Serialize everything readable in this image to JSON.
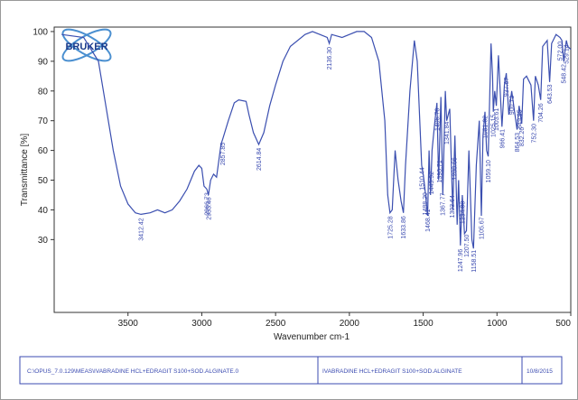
{
  "chart_data": {
    "type": "line",
    "logo": "BRUKER",
    "xlabel": "Wavenumber cm-1",
    "ylabel": "Transmittance [%]",
    "xlim": [
      4000,
      500
    ],
    "ylim": [
      5.5,
      101.5
    ],
    "xticks": [
      3500,
      3000,
      2500,
      2000,
      1500,
      1000,
      500
    ],
    "yticks": [
      30,
      40,
      50,
      60,
      70,
      80,
      90,
      100
    ],
    "color": "#3b4fb0",
    "x": [
      3950,
      3800,
      3700,
      3650,
      3600,
      3550,
      3500,
      3450,
      3412,
      3350,
      3300,
      3250,
      3200,
      3150,
      3100,
      3050,
      3020,
      3000,
      2985,
      2966,
      2955,
      2940,
      2920,
      2900,
      2870,
      2857,
      2820,
      2780,
      2750,
      2700,
      2680,
      2650,
      2614,
      2580,
      2540,
      2500,
      2450,
      2400,
      2300,
      2250,
      2200,
      2150,
      2136,
      2120,
      2050,
      2000,
      1950,
      1900,
      1850,
      1800,
      1760,
      1740,
      1725,
      1710,
      1690,
      1670,
      1650,
      1634,
      1620,
      1590,
      1560,
      1540,
      1510,
      1500,
      1490,
      1470,
      1460,
      1450,
      1440,
      1420,
      1407,
      1395,
      1380,
      1367,
      1350,
      1341,
      1320,
      1300,
      1285,
      1270,
      1260,
      1248,
      1235,
      1220,
      1207,
      1190,
      1170,
      1159,
      1140,
      1120,
      1106,
      1095,
      1081,
      1070,
      1059,
      1040,
      1030,
      1025,
      1015,
      1004,
      990,
      966,
      950,
      937,
      920,
      900,
      864,
      850,
      832,
      820,
      800,
      770,
      752,
      740,
      720,
      704,
      690,
      660,
      643,
      630,
      600,
      573,
      560,
      548,
      530,
      520,
      500
    ],
    "values": [
      99,
      98,
      90,
      75,
      60,
      48,
      42,
      39,
      38.5,
      39,
      40,
      39,
      40,
      43,
      47,
      53,
      55,
      54,
      48,
      47,
      45,
      50,
      52,
      51,
      62,
      64,
      70,
      76,
      77,
      76.5,
      72,
      66,
      62,
      66,
      75,
      82,
      90,
      95,
      99,
      100,
      99,
      98,
      96,
      99,
      98,
      99,
      100,
      100,
      98,
      90,
      70,
      45,
      39,
      40,
      60,
      50,
      43,
      39,
      55,
      80,
      97,
      90,
      55,
      52,
      48,
      38,
      60,
      45,
      60,
      70,
      76,
      50,
      78,
      45,
      80,
      70,
      74,
      40,
      65,
      35,
      50,
      28,
      45,
      32,
      33,
      60,
      30,
      27,
      55,
      70,
      38,
      65,
      73,
      60,
      58,
      96,
      85,
      73,
      80,
      75,
      92,
      68,
      82,
      86,
      72,
      80,
      67,
      75,
      69,
      84,
      85,
      82,
      70,
      85,
      82,
      77,
      95,
      97,
      83,
      96,
      99,
      98,
      97,
      90,
      97,
      95,
      94
    ],
    "annotations": [
      {
        "value": 3412.42,
        "label": "3412.42"
      },
      {
        "value": 2966.73,
        "label": "2966.73"
      },
      {
        "value": 2953.46,
        "label": "2953.46"
      },
      {
        "value": 2857.85,
        "label": "2857.85"
      },
      {
        "value": 2614.84,
        "label": "2614.84"
      },
      {
        "value": 2136.3,
        "label": "2136.30"
      },
      {
        "value": 1725.28,
        "label": "1725.28"
      },
      {
        "value": 1633.86,
        "label": "1633.86"
      },
      {
        "value": 1510.44,
        "label": "1510.44"
      },
      {
        "value": 1488.2,
        "label": "1488.20"
      },
      {
        "value": 1468.41,
        "label": "1468.41"
      },
      {
        "value": 1443.92,
        "label": "1443.92"
      },
      {
        "value": 1406.76,
        "label": "1406.76"
      },
      {
        "value": 1390.71,
        "label": "1390.71"
      },
      {
        "value": 1367.77,
        "label": "1367.77"
      },
      {
        "value": 1341.84,
        "label": "1341.84"
      },
      {
        "value": 1303.64,
        "label": "1303.64"
      },
      {
        "value": 1288.66,
        "label": "1288.66"
      },
      {
        "value": 1247.96,
        "label": "1247.96"
      },
      {
        "value": 1234.03,
        "label": "1234.03"
      },
      {
        "value": 1207.5,
        "label": "1207.50"
      },
      {
        "value": 1158.51,
        "label": "1158.51"
      },
      {
        "value": 1105.67,
        "label": "1105.67"
      },
      {
        "value": 1081.02,
        "label": "1081.02"
      },
      {
        "value": 1059.1,
        "label": "1059.10"
      },
      {
        "value": 1025.15,
        "label": "1025.15"
      },
      {
        "value": 1003.61,
        "label": "1003.61"
      },
      {
        "value": 966.41,
        "label": "966.41"
      },
      {
        "value": 937.67,
        "label": "937.67"
      },
      {
        "value": 900.73,
        "label": "900.73"
      },
      {
        "value": 864.53,
        "label": "864.53"
      },
      {
        "value": 849.95,
        "label": "849.95"
      },
      {
        "value": 832.26,
        "label": "832.26"
      },
      {
        "value": 752.3,
        "label": "752.30"
      },
      {
        "value": 704.26,
        "label": "704.26"
      },
      {
        "value": 643.53,
        "label": "643.53"
      },
      {
        "value": 572.0,
        "label": "572.00"
      },
      {
        "value": 548.42,
        "label": "548.42"
      },
      {
        "value": 529.14,
        "label": "529.14"
      }
    ],
    "footer": {
      "path": "C:\\OPUS_7.0.129\\MEAS\\IVABRADINE HCL+EDRAGIT S100+SOD.ALGINATE.0",
      "sample": "IVABRADINE HCL+EDRAGIT S100+SOD.ALGINATE",
      "date": "10/8/2015"
    }
  }
}
